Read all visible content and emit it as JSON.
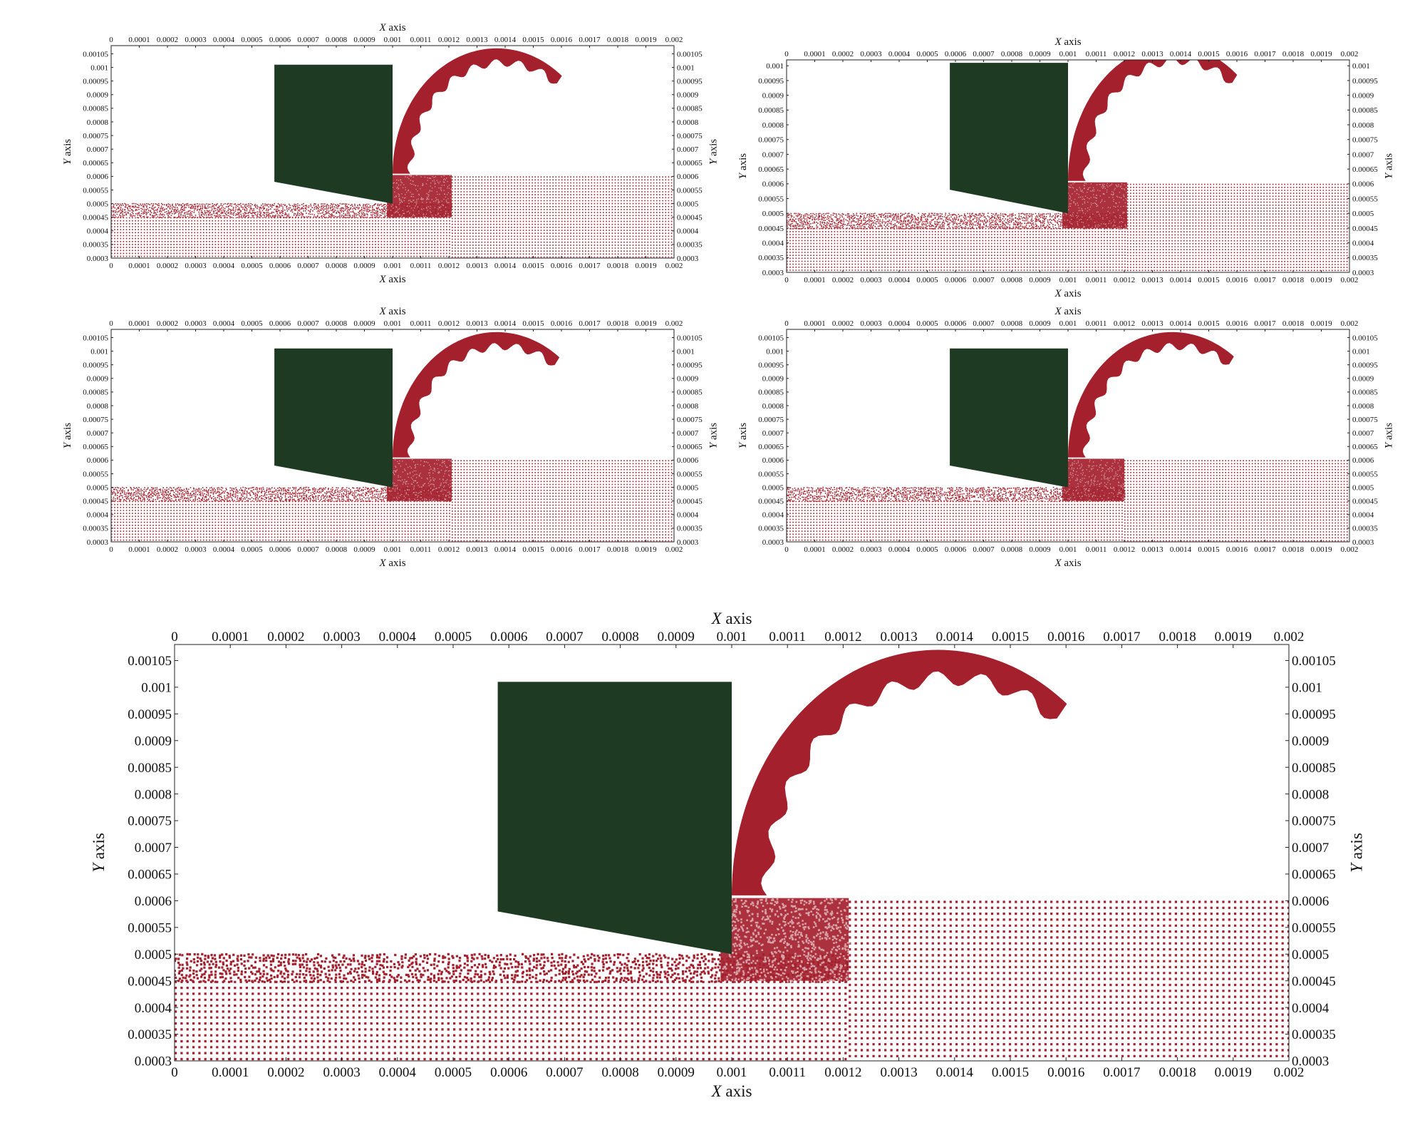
{
  "colors": {
    "particle": "#a3202c",
    "tool": "#1f3a23",
    "axis": "#222222"
  },
  "chart_data": [
    {
      "type": "scatter",
      "xlabel_var": "X",
      "xlabel_unit": "axis",
      "ylabel_var": "Y",
      "ylabel_unit": "axis",
      "xlim": [
        0,
        0.002
      ],
      "ylim": [
        0.0003,
        0.00108
      ],
      "x_ticks": [
        "0",
        "0.0001",
        "0.0002",
        "0.0003",
        "0.0004",
        "0.0005",
        "0.0006",
        "0.0007",
        "0.0008",
        "0.0009",
        "0.001",
        "0.0011",
        "0.0012",
        "0.0013",
        "0.0014",
        "0.0015",
        "0.0016",
        "0.0017",
        "0.0018",
        "0.0019",
        "0.002"
      ],
      "y_ticks": [
        "0.0003",
        "0.00035",
        "0.0004",
        "0.00045",
        "0.0005",
        "0.00055",
        "0.0006",
        "0.00065",
        "0.0007",
        "0.00075",
        "0.0008",
        "0.00085",
        "0.0009",
        "0.00095",
        "0.001",
        "0.00105"
      ],
      "tool_polygon": [
        [
          0.00058,
          0.00101
        ],
        [
          0.001,
          0.00101
        ],
        [
          0.001,
          0.0005
        ],
        [
          0.00058,
          0.00058
        ]
      ],
      "workpiece_top": 0.0006,
      "workpiece_cut_depth": 0.00045,
      "machined_surface": 0.0005,
      "chip_front_x": 0.00121,
      "chip_tip": [
        0.00157,
        0.00092
      ]
    },
    {
      "type": "scatter",
      "xlabel_var": "X",
      "xlabel_unit": "axis",
      "ylabel_var": "Y",
      "ylabel_unit": "axis",
      "xlim": [
        0,
        0.002
      ],
      "ylim": [
        0.0003,
        0.00102
      ],
      "x_ticks": [
        "0",
        "0.0001",
        "0.0002",
        "0.0003",
        "0.0004",
        "0.0005",
        "0.0006",
        "0.0007",
        "0.0008",
        "0.0009",
        "0.001",
        "0.0011",
        "0.0012",
        "0.0013",
        "0.0014",
        "0.0015",
        "0.0016",
        "0.0017",
        "0.0018",
        "0.0019",
        "0.002"
      ],
      "y_ticks": [
        "0.0003",
        "0.00035",
        "0.0004",
        "0.00045",
        "0.0005",
        "0.00055",
        "0.0006",
        "0.00065",
        "0.0007",
        "0.00075",
        "0.0008",
        "0.00085",
        "0.0009",
        "0.00095",
        "0.001"
      ],
      "tool_polygon": [
        [
          0.00058,
          0.00101
        ],
        [
          0.001,
          0.00101
        ],
        [
          0.001,
          0.0005
        ],
        [
          0.00058,
          0.00058
        ]
      ],
      "workpiece_top": 0.0006,
      "workpiece_cut_depth": 0.00045,
      "machined_surface": 0.0005,
      "chip_front_x": 0.00121,
      "chip_tip": [
        0.00155,
        0.00089
      ]
    },
    {
      "type": "scatter",
      "xlabel_var": "X",
      "xlabel_unit": "axis",
      "ylabel_var": "Y",
      "ylabel_unit": "axis",
      "xlim": [
        0,
        0.002
      ],
      "ylim": [
        0.0003,
        0.00108
      ],
      "x_ticks": [
        "0",
        "0.0001",
        "0.0002",
        "0.0003",
        "0.0004",
        "0.0005",
        "0.0006",
        "0.0007",
        "0.0008",
        "0.0009",
        "0.001",
        "0.0011",
        "0.0012",
        "0.0013",
        "0.0014",
        "0.0015",
        "0.0016",
        "0.0017",
        "0.0018",
        "0.0019",
        "0.002"
      ],
      "y_ticks": [
        "0.0003",
        "0.00035",
        "0.0004",
        "0.00045",
        "0.0005",
        "0.00055",
        "0.0006",
        "0.00065",
        "0.0007",
        "0.00075",
        "0.0008",
        "0.00085",
        "0.0009",
        "0.00095",
        "0.001",
        "0.00105"
      ],
      "tool_polygon": [
        [
          0.00058,
          0.00101
        ],
        [
          0.001,
          0.00101
        ],
        [
          0.001,
          0.0005
        ],
        [
          0.00058,
          0.00058
        ]
      ],
      "workpiece_top": 0.0006,
      "workpiece_cut_depth": 0.00045,
      "machined_surface": 0.0005,
      "chip_front_x": 0.00121,
      "chip_tip": [
        0.00154,
        0.00089
      ]
    },
    {
      "type": "scatter",
      "xlabel_var": "X",
      "xlabel_unit": "axis",
      "ylabel_var": "Y",
      "ylabel_unit": "axis",
      "xlim": [
        0,
        0.002
      ],
      "ylim": [
        0.0003,
        0.00108
      ],
      "x_ticks": [
        "0",
        "0.0001",
        "0.0002",
        "0.0003",
        "0.0004",
        "0.0005",
        "0.0006",
        "0.0007",
        "0.0008",
        "0.0009",
        "0.001",
        "0.0011",
        "0.0012",
        "0.0013",
        "0.0014",
        "0.0015",
        "0.0016",
        "0.0017",
        "0.0018",
        "0.0019",
        "0.002"
      ],
      "y_ticks": [
        "0.0003",
        "0.00035",
        "0.0004",
        "0.00045",
        "0.0005",
        "0.00055",
        "0.0006",
        "0.00065",
        "0.0007",
        "0.00075",
        "0.0008",
        "0.00085",
        "0.0009",
        "0.00095",
        "0.001",
        "0.00105"
      ],
      "tool_polygon": [
        [
          0.00058,
          0.00101
        ],
        [
          0.001,
          0.00101
        ],
        [
          0.001,
          0.0005
        ],
        [
          0.00058,
          0.00058
        ]
      ],
      "workpiece_top": 0.0006,
      "workpiece_cut_depth": 0.00045,
      "machined_surface": 0.0005,
      "chip_front_x": 0.0012,
      "chip_tip": [
        0.00153,
        0.00088
      ]
    },
    {
      "type": "scatter",
      "xlabel_var": "X",
      "xlabel_unit": "axis",
      "ylabel_var": "Y",
      "ylabel_unit": "axis",
      "xlim": [
        0,
        0.002
      ],
      "ylim": [
        0.0003,
        0.00108
      ],
      "x_ticks": [
        "0",
        "0.0001",
        "0.0002",
        "0.0003",
        "0.0004",
        "0.0005",
        "0.0006",
        "0.0007",
        "0.0008",
        "0.0009",
        "0.001",
        "0.0011",
        "0.0012",
        "0.0013",
        "0.0014",
        "0.0015",
        "0.0016",
        "0.0017",
        "0.0018",
        "0.0019",
        "0.002"
      ],
      "y_ticks": [
        "0.0003",
        "0.00035",
        "0.0004",
        "0.00045",
        "0.0005",
        "0.00055",
        "0.0006",
        "0.00065",
        "0.0007",
        "0.00075",
        "0.0008",
        "0.00085",
        "0.0009",
        "0.00095",
        "0.001",
        "0.00105"
      ],
      "tool_polygon": [
        [
          0.00058,
          0.00101
        ],
        [
          0.001,
          0.00101
        ],
        [
          0.001,
          0.0005
        ],
        [
          0.00058,
          0.00058
        ]
      ],
      "workpiece_top": 0.0006,
      "workpiece_cut_depth": 0.00045,
      "machined_surface": 0.0005,
      "chip_front_x": 0.00121,
      "chip_tip": [
        0.00157,
        0.00092
      ]
    }
  ]
}
